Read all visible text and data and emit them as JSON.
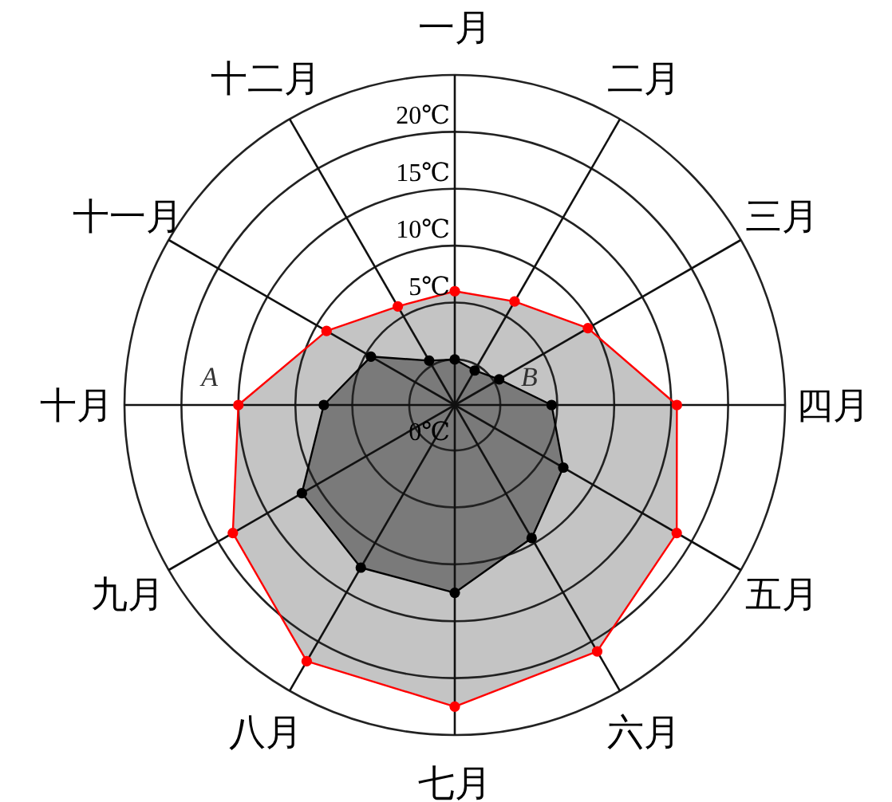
{
  "chart_data": {
    "type": "radar",
    "categories": [
      "一月",
      "二月",
      "三月",
      "四月",
      "五月",
      "六月",
      "七月",
      "八月",
      "九月",
      "十月",
      "十一月",
      "十二月"
    ],
    "series": [
      {
        "name": "A",
        "color": "#ff0000",
        "values": [
          6,
          6.5,
          9.5,
          15.5,
          18.5,
          21,
          22.5,
          22,
          18.5,
          15,
          9,
          6
        ]
      },
      {
        "name": "B",
        "color": "#000000",
        "values": [
          0,
          -0.5,
          0.5,
          4.5,
          7,
          9.5,
          12.5,
          12.5,
          11.5,
          7.5,
          4.5,
          0.5
        ]
      }
    ],
    "ylim": [
      -4,
      25
    ],
    "yticks": [
      {
        "value": 0,
        "label": "0℃"
      },
      {
        "value": 5,
        "label": "5℃"
      },
      {
        "value": 10,
        "label": "10℃"
      },
      {
        "value": 15,
        "label": "15℃"
      },
      {
        "value": 20,
        "label": "20℃"
      }
    ],
    "marker": "circle",
    "grid": true
  }
}
